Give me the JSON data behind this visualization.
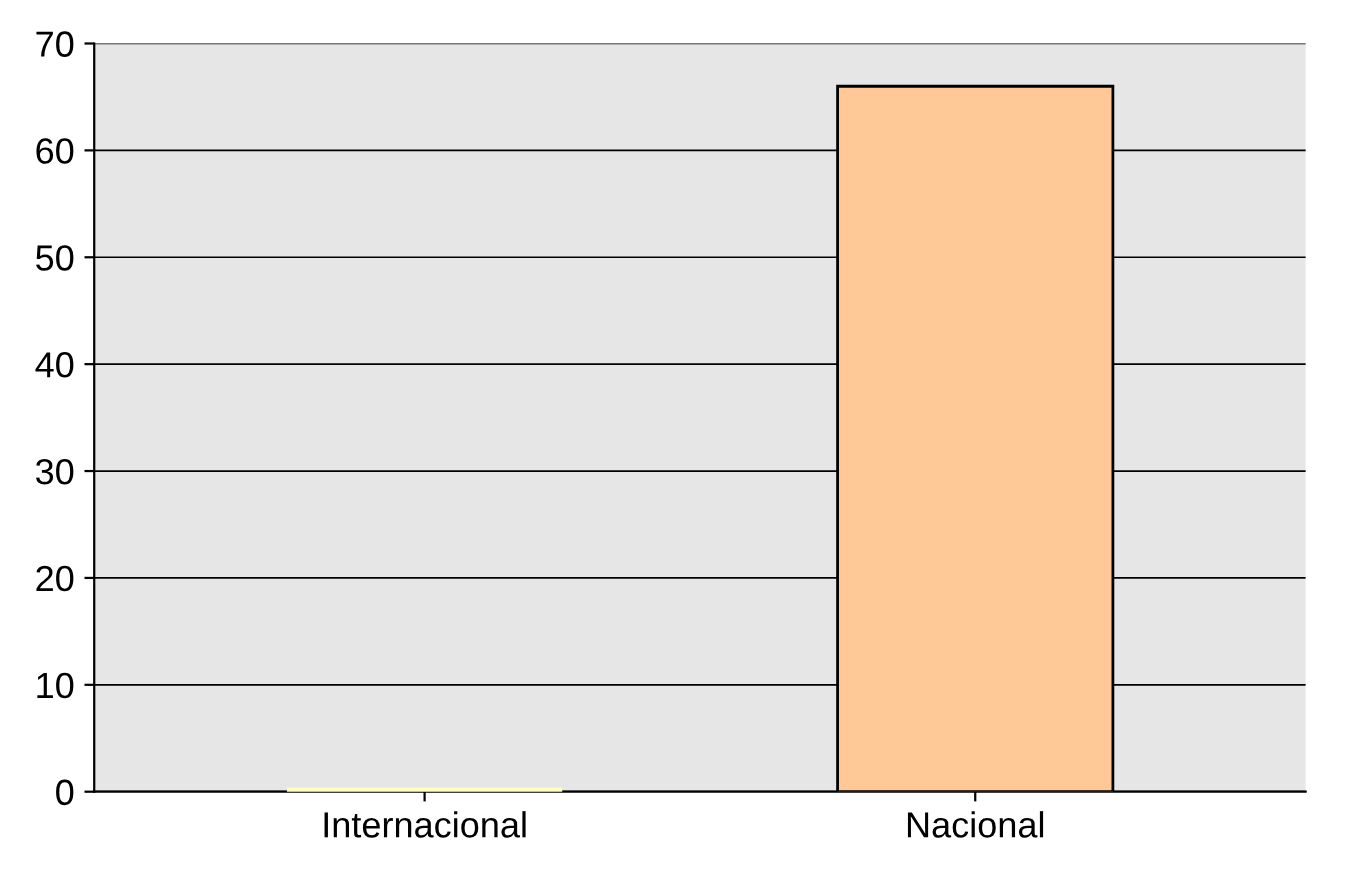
{
  "chart_data": {
    "type": "bar",
    "categories": [
      "Internacional",
      "Nacional"
    ],
    "values": [
      0,
      66
    ],
    "colors": [
      "#ffffc0",
      "#ffc896"
    ],
    "ylim": [
      0,
      70
    ],
    "yticks": [
      0,
      10,
      20,
      30,
      40,
      50,
      60,
      70
    ],
    "grid": "y"
  }
}
